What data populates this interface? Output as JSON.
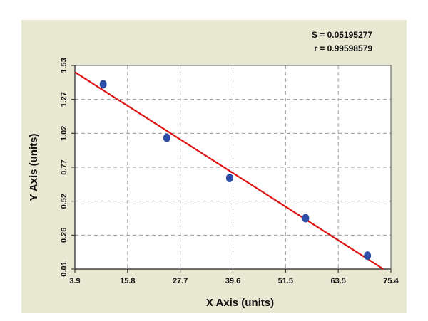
{
  "chart_data": {
    "type": "scatter",
    "title": "",
    "xlabel": "X Axis (units)",
    "ylabel": "Y Axis (units)",
    "annotations": [
      "S = 0.05195277",
      "r = 0.99598579"
    ],
    "x_ticks": [
      "3.9",
      "15.8",
      "27.7",
      "39.6",
      "51.5",
      "63.5",
      "75.4"
    ],
    "y_ticks": [
      "0.01",
      "0.26",
      "0.52",
      "0.77",
      "1.02",
      "1.27",
      "1.53"
    ],
    "xlim": [
      3.9,
      75.4
    ],
    "ylim": [
      0.01,
      1.53
    ],
    "grid": true,
    "legend": "none",
    "series": [
      {
        "kind": "points",
        "color": "#2d4ea8",
        "points": [
          {
            "x": 10.3,
            "y": 1.39
          },
          {
            "x": 24.7,
            "y": 0.99
          },
          {
            "x": 38.9,
            "y": 0.69
          },
          {
            "x": 56.1,
            "y": 0.39
          },
          {
            "x": 70.1,
            "y": 0.11
          }
        ]
      },
      {
        "kind": "fit-line",
        "color": "#dd1111",
        "points": [
          {
            "x": 3.9,
            "y": 1.48
          },
          {
            "x": 73.7,
            "y": 0.01
          }
        ]
      }
    ]
  }
}
